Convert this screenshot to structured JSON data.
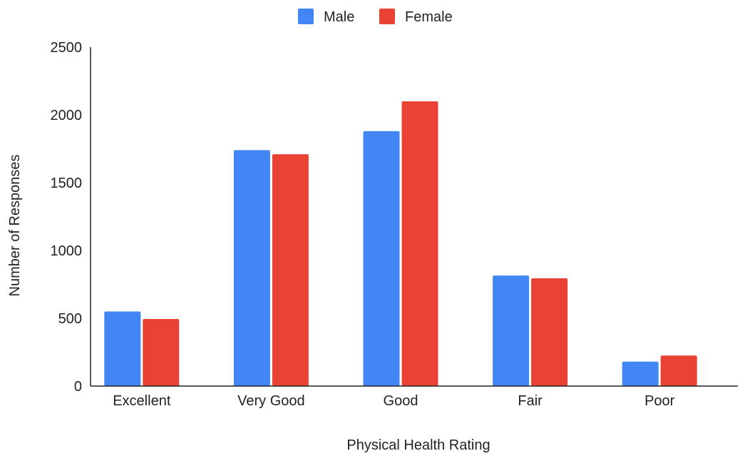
{
  "chart_data": {
    "type": "bar",
    "title": "",
    "xlabel": "Physical Health Rating",
    "ylabel": "Number of Responses",
    "categories": [
      "Excellent",
      "Very Good",
      "Good",
      "Fair",
      "Poor"
    ],
    "series": [
      {
        "name": "Male",
        "color": "#4285f4",
        "values": [
          550,
          1740,
          1880,
          815,
          180
        ]
      },
      {
        "name": "Female",
        "color": "#ea4335",
        "values": [
          495,
          1710,
          2100,
          795,
          225
        ]
      }
    ],
    "ylim": [
      0,
      2500
    ],
    "yticks": [
      0,
      500,
      1000,
      1500,
      2000,
      2500
    ],
    "grid": false,
    "legend_position": "top-center"
  }
}
